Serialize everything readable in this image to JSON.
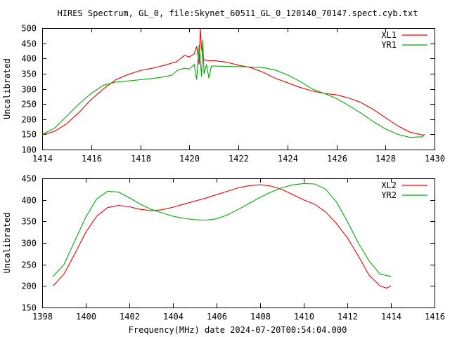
{
  "title": "HIRES Spectrum, GL_0, file:Skynet_60511_GL_0_120140_70147.spect.cyb.txt",
  "footer": "Frequency(MHz) date 2024-07-20T00:54:04.000",
  "chart_data": [
    {
      "type": "line",
      "ylabel": "Uncalibrated",
      "xlim": [
        1414,
        1430
      ],
      "ylim": [
        100,
        500
      ],
      "xticks": [
        1414,
        1416,
        1418,
        1420,
        1422,
        1424,
        1426,
        1428,
        1430
      ],
      "yticks": [
        100,
        150,
        200,
        250,
        300,
        350,
        400,
        450,
        500
      ],
      "legend_position": "top-right",
      "series": [
        {
          "name": "XL1",
          "color": "#ee0000",
          "points": [
            [
              1414.0,
              148
            ],
            [
              1414.5,
              160
            ],
            [
              1415.0,
              185
            ],
            [
              1415.5,
              222
            ],
            [
              1416.0,
              265
            ],
            [
              1416.5,
              300
            ],
            [
              1417.0,
              330
            ],
            [
              1417.5,
              347
            ],
            [
              1418.0,
              360
            ],
            [
              1418.5,
              368
            ],
            [
              1419.0,
              378
            ],
            [
              1419.5,
              390
            ],
            [
              1419.8,
              410
            ],
            [
              1420.0,
              405
            ],
            [
              1420.2,
              415
            ],
            [
              1420.3,
              440
            ],
            [
              1420.4,
              380
            ],
            [
              1420.45,
              500
            ],
            [
              1420.5,
              430
            ],
            [
              1420.6,
              395
            ],
            [
              1420.8,
              392
            ],
            [
              1421.0,
              393
            ],
            [
              1421.5,
              388
            ],
            [
              1422.0,
              378
            ],
            [
              1422.5,
              370
            ],
            [
              1423.0,
              355
            ],
            [
              1423.5,
              335
            ],
            [
              1424.0,
              320
            ],
            [
              1424.5,
              305
            ],
            [
              1425.0,
              293
            ],
            [
              1425.5,
              285
            ],
            [
              1426.0,
              280
            ],
            [
              1426.5,
              270
            ],
            [
              1427.0,
              255
            ],
            [
              1427.5,
              232
            ],
            [
              1428.0,
              205
            ],
            [
              1428.5,
              178
            ],
            [
              1429.0,
              157
            ],
            [
              1429.5,
              148
            ],
            [
              1429.6,
              148
            ]
          ]
        },
        {
          "name": "YR1",
          "color": "#00aa00",
          "points": [
            [
              1414.0,
              150
            ],
            [
              1414.5,
              170
            ],
            [
              1415.0,
              210
            ],
            [
              1415.5,
              250
            ],
            [
              1416.0,
              285
            ],
            [
              1416.5,
              312
            ],
            [
              1417.0,
              322
            ],
            [
              1417.5,
              326
            ],
            [
              1418.0,
              330
            ],
            [
              1418.5,
              334
            ],
            [
              1419.0,
              340
            ],
            [
              1419.3,
              345
            ],
            [
              1419.5,
              360
            ],
            [
              1419.8,
              368
            ],
            [
              1420.0,
              365
            ],
            [
              1420.2,
              380
            ],
            [
              1420.3,
              330
            ],
            [
              1420.4,
              445
            ],
            [
              1420.5,
              340
            ],
            [
              1420.55,
              460
            ],
            [
              1420.6,
              350
            ],
            [
              1420.7,
              380
            ],
            [
              1420.8,
              335
            ],
            [
              1420.9,
              375
            ],
            [
              1421.0,
              375
            ],
            [
              1421.5,
              374
            ],
            [
              1422.0,
              373
            ],
            [
              1422.5,
              372
            ],
            [
              1423.0,
              370
            ],
            [
              1423.5,
              362
            ],
            [
              1424.0,
              346
            ],
            [
              1424.5,
              325
            ],
            [
              1425.0,
              300
            ],
            [
              1425.5,
              285
            ],
            [
              1426.0,
              268
            ],
            [
              1426.5,
              245
            ],
            [
              1427.0,
              220
            ],
            [
              1427.5,
              192
            ],
            [
              1428.0,
              168
            ],
            [
              1428.5,
              150
            ],
            [
              1429.0,
              140
            ],
            [
              1429.5,
              142
            ],
            [
              1429.6,
              150
            ]
          ]
        }
      ]
    },
    {
      "type": "line",
      "ylabel": "Uncalibrated",
      "xlim": [
        1398,
        1416
      ],
      "ylim": [
        150,
        450
      ],
      "xticks": [
        1398,
        1400,
        1402,
        1404,
        1406,
        1408,
        1410,
        1412,
        1414,
        1416
      ],
      "yticks": [
        150,
        200,
        250,
        300,
        350,
        400,
        450
      ],
      "legend_position": "top-right",
      "series": [
        {
          "name": "XL2",
          "color": "#ee0000",
          "points": [
            [
              1398.5,
              200
            ],
            [
              1399.0,
              228
            ],
            [
              1399.5,
              275
            ],
            [
              1400.0,
              325
            ],
            [
              1400.5,
              362
            ],
            [
              1401.0,
              382
            ],
            [
              1401.5,
              387
            ],
            [
              1402.0,
              384
            ],
            [
              1402.5,
              378
            ],
            [
              1403.0,
              375
            ],
            [
              1403.5,
              377
            ],
            [
              1404.0,
              383
            ],
            [
              1404.5,
              390
            ],
            [
              1405.0,
              397
            ],
            [
              1405.5,
              404
            ],
            [
              1406.0,
              412
            ],
            [
              1406.5,
              420
            ],
            [
              1407.0,
              428
            ],
            [
              1407.5,
              433
            ],
            [
              1408.0,
              435
            ],
            [
              1408.5,
              432
            ],
            [
              1409.0,
              424
            ],
            [
              1409.5,
              412
            ],
            [
              1410.0,
              400
            ],
            [
              1410.5,
              390
            ],
            [
              1411.0,
              372
            ],
            [
              1411.5,
              345
            ],
            [
              1412.0,
              312
            ],
            [
              1412.5,
              270
            ],
            [
              1413.0,
              225
            ],
            [
              1413.5,
              200
            ],
            [
              1413.8,
              195
            ],
            [
              1414.0,
              200
            ]
          ]
        },
        {
          "name": "YR2",
          "color": "#00aa00",
          "points": [
            [
              1398.5,
              222
            ],
            [
              1399.0,
              250
            ],
            [
              1399.5,
              305
            ],
            [
              1400.0,
              360
            ],
            [
              1400.5,
              402
            ],
            [
              1401.0,
              420
            ],
            [
              1401.5,
              418
            ],
            [
              1402.0,
              405
            ],
            [
              1402.5,
              390
            ],
            [
              1403.0,
              378
            ],
            [
              1403.5,
              370
            ],
            [
              1404.0,
              362
            ],
            [
              1404.5,
              357
            ],
            [
              1405.0,
              354
            ],
            [
              1405.5,
              353
            ],
            [
              1406.0,
              356
            ],
            [
              1406.5,
              365
            ],
            [
              1407.0,
              378
            ],
            [
              1407.5,
              392
            ],
            [
              1408.0,
              406
            ],
            [
              1408.5,
              418
            ],
            [
              1409.0,
              428
            ],
            [
              1409.5,
              435
            ],
            [
              1410.0,
              438
            ],
            [
              1410.5,
              437
            ],
            [
              1411.0,
              425
            ],
            [
              1411.5,
              395
            ],
            [
              1412.0,
              350
            ],
            [
              1412.5,
              300
            ],
            [
              1413.0,
              258
            ],
            [
              1413.5,
              228
            ],
            [
              1414.0,
              222
            ]
          ]
        }
      ]
    }
  ]
}
